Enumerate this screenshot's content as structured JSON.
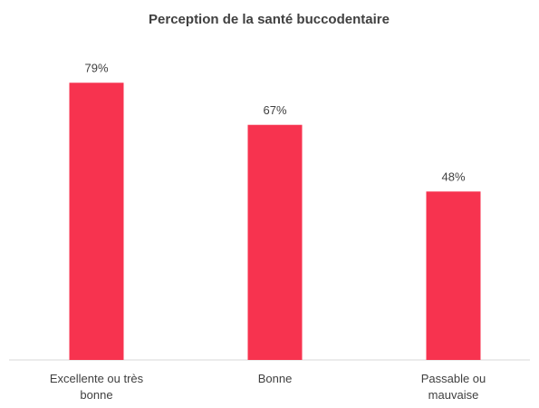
{
  "chart_data": {
    "type": "bar",
    "title": "Perception de la santé buccodentaire",
    "categories": [
      "Excellente ou très bonne",
      "Bonne",
      "Passable ou mauvaise"
    ],
    "values": [
      79,
      67,
      48
    ],
    "value_labels": [
      "79%",
      "67%",
      "48%"
    ],
    "color": "#f7334f",
    "ylim": [
      0,
      100
    ]
  }
}
